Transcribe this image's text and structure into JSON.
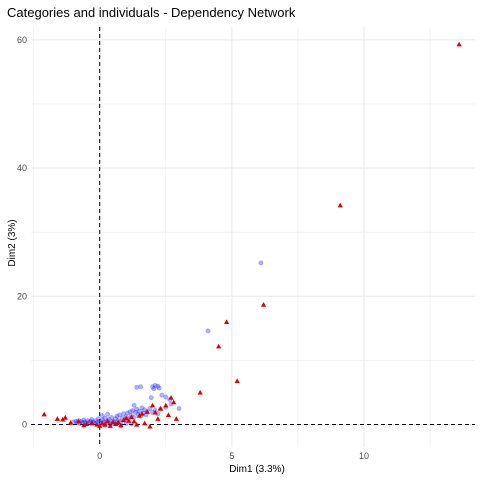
{
  "chart_data": {
    "type": "scatter",
    "title": "Categories and individuals - Dependency Network",
    "xlabel": "Dim1 (3.3%)",
    "ylabel": "Dim2 (3%)",
    "xlim": [
      -2.6,
      14.2
    ],
    "ylim": [
      -3.5,
      62.0
    ],
    "x_ticks": [
      0,
      5,
      10
    ],
    "y_ticks": [
      0,
      20,
      40,
      60
    ],
    "grid": true,
    "reference_lines": {
      "x": 0,
      "y": 0,
      "style": "dashed"
    },
    "legend": "none",
    "series": [
      {
        "marker": "circle",
        "color": "#1a1aff",
        "opacity": 0.35,
        "points": [
          [
            -1.0,
            0.4
          ],
          [
            -0.9,
            0.5
          ],
          [
            -0.85,
            0.3
          ],
          [
            -0.8,
            0.6
          ],
          [
            -0.75,
            0.2
          ],
          [
            -0.7,
            0.5
          ],
          [
            -0.65,
            0.3
          ],
          [
            -0.6,
            0.7
          ],
          [
            -0.55,
            0.4
          ],
          [
            -0.5,
            0.2
          ],
          [
            -0.45,
            0.6
          ],
          [
            -0.4,
            0.3
          ],
          [
            -0.35,
            0.5
          ],
          [
            -0.3,
            0.8
          ],
          [
            -0.25,
            0.4
          ],
          [
            -0.2,
            0.2
          ],
          [
            -0.15,
            0.6
          ],
          [
            -0.1,
            0.3
          ],
          [
            -0.05,
            0.9
          ],
          [
            0.0,
            0.5
          ],
          [
            0.05,
            0.2
          ],
          [
            0.1,
            0.7
          ],
          [
            0.15,
            0.4
          ],
          [
            0.2,
            1.0
          ],
          [
            0.25,
            0.3
          ],
          [
            0.3,
            0.6
          ],
          [
            0.35,
            0.8
          ],
          [
            0.4,
            0.2
          ],
          [
            0.45,
            1.1
          ],
          [
            0.5,
            0.5
          ],
          [
            0.55,
            0.3
          ],
          [
            0.6,
            0.9
          ],
          [
            0.65,
            1.3
          ],
          [
            0.7,
            0.6
          ],
          [
            0.75,
            1.5
          ],
          [
            0.8,
            0.4
          ],
          [
            0.85,
            1.0
          ],
          [
            0.9,
            1.7
          ],
          [
            0.95,
            0.7
          ],
          [
            1.0,
            1.2
          ],
          [
            1.05,
            1.8
          ],
          [
            1.1,
            0.9
          ],
          [
            1.15,
            2.0
          ],
          [
            1.2,
            1.4
          ],
          [
            1.25,
            2.2
          ],
          [
            1.3,
            1.1
          ],
          [
            1.35,
            1.9
          ],
          [
            1.4,
            2.4
          ],
          [
            1.45,
            1.6
          ],
          [
            1.5,
            2.1
          ],
          [
            1.55,
            1.3
          ],
          [
            1.6,
            2.6
          ],
          [
            1.65,
            1.8
          ],
          [
            1.7,
            2.3
          ],
          [
            1.75,
            1.5
          ],
          [
            1.8,
            2.0
          ],
          [
            1.9,
            2.5
          ],
          [
            2.0,
            1.9
          ],
          [
            2.1,
            2.2
          ],
          [
            2.2,
            1.7
          ],
          [
            2.3,
            2.4
          ],
          [
            2.5,
            2.7
          ],
          [
            2.7,
            3.2
          ],
          [
            0.2,
            -0.1
          ],
          [
            0.4,
            0.0
          ],
          [
            0.6,
            0.1
          ],
          [
            0.8,
            -0.2
          ],
          [
            1.0,
            0.2
          ],
          [
            1.2,
            0.1
          ],
          [
            0.1,
            1.4
          ],
          [
            0.3,
            1.6
          ],
          [
            1.4,
            5.8
          ],
          [
            1.55,
            5.9
          ],
          [
            2.0,
            5.9
          ],
          [
            2.1,
            6.1
          ],
          [
            2.25,
            5.7
          ],
          [
            2.2,
            6.0
          ],
          [
            2.05,
            5.6
          ],
          [
            1.95,
            4.2
          ],
          [
            2.5,
            4.3
          ],
          [
            2.65,
            3.9
          ],
          [
            2.35,
            4.6
          ],
          [
            3.0,
            2.5
          ],
          [
            6.1,
            25.2
          ],
          [
            4.1,
            14.6
          ],
          [
            1.3,
            3.0
          ]
        ]
      },
      {
        "marker": "triangle",
        "color": "#e00000",
        "opacity": 1,
        "points": [
          [
            13.6,
            59.3
          ],
          [
            9.1,
            34.2
          ],
          [
            6.2,
            18.7
          ],
          [
            4.8,
            16.0
          ],
          [
            4.5,
            12.2
          ],
          [
            5.2,
            6.8
          ],
          [
            3.8,
            5.0
          ],
          [
            2.7,
            4.2
          ],
          [
            2.8,
            3.5
          ],
          [
            2.5,
            3.0
          ],
          [
            2.0,
            3.0
          ],
          [
            2.3,
            2.5
          ],
          [
            1.8,
            2.0
          ],
          [
            1.6,
            1.7
          ],
          [
            2.1,
            1.9
          ],
          [
            2.6,
            1.5
          ],
          [
            2.9,
            0.9
          ],
          [
            1.5,
            1.4
          ],
          [
            1.2,
            1.2
          ],
          [
            1.0,
            1.0
          ],
          [
            1.3,
            0.5
          ],
          [
            1.1,
            0.6
          ],
          [
            0.7,
            0.4
          ],
          [
            0.9,
            0.7
          ],
          [
            0.5,
            0.4
          ],
          [
            0.3,
            0.5
          ],
          [
            0.1,
            0.2
          ],
          [
            0.2,
            0.0
          ],
          [
            -0.1,
            0.0
          ],
          [
            -0.3,
            0.2
          ],
          [
            -0.5,
            0.1
          ],
          [
            -0.8,
            0.5
          ],
          [
            -1.4,
            0.8
          ],
          [
            -1.6,
            0.9
          ],
          [
            -0.6,
            -0.1
          ],
          [
            -1.1,
            0.3
          ],
          [
            0.4,
            -0.2
          ],
          [
            0.6,
            0.1
          ],
          [
            0.8,
            -0.1
          ],
          [
            1.9,
            -0.3
          ],
          [
            1.4,
            0.0
          ],
          [
            -0.3,
            0.3
          ],
          [
            0.0,
            -0.2
          ],
          [
            2.2,
            0.9
          ],
          [
            1.7,
            0.2
          ],
          [
            -2.1,
            1.6
          ],
          [
            -1.3,
            1.1
          ]
        ]
      }
    ]
  }
}
